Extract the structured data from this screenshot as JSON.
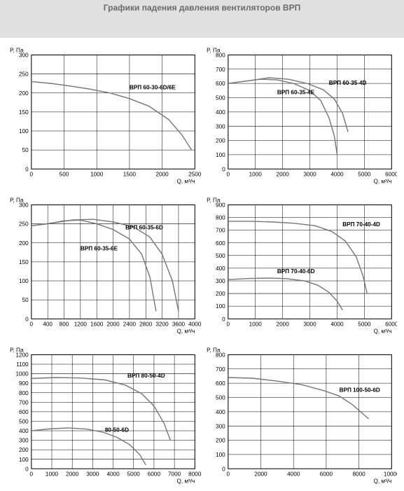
{
  "page_title": "Графики падения давления вентиляторов ВРП",
  "colors": {
    "header_bg": "#e0e0e0",
    "title_text": "#6a6a6a",
    "grid": "#000000",
    "curve": "#777777",
    "background": "#ffffff"
  },
  "charts": [
    {
      "id": "c1",
      "y_label": "P, Па",
      "x_label": "Q, м³/ч",
      "xlim": [
        0,
        2500
      ],
      "xtick_step": 500,
      "ylim": [
        0,
        300
      ],
      "ytick_step": 50,
      "series": [
        {
          "label": "ВРП 60-30-6D/6E",
          "label_xy": [
            1500,
            210
          ],
          "data": [
            [
              0,
              230
            ],
            [
              300,
              225
            ],
            [
              600,
              218
            ],
            [
              900,
              210
            ],
            [
              1200,
              200
            ],
            [
              1500,
              185
            ],
            [
              1800,
              165
            ],
            [
              2100,
              130
            ],
            [
              2300,
              90
            ],
            [
              2450,
              50
            ]
          ]
        }
      ]
    },
    {
      "id": "c2",
      "y_label": "P, Па",
      "x_label": "Q, м³/ч",
      "xlim": [
        0,
        6000
      ],
      "xtick_step": 1000,
      "ylim": [
        0,
        800
      ],
      "ytick_step": 100,
      "series": [
        {
          "label": "ВРП 60-35-4E",
          "label_xy": [
            1800,
            525
          ],
          "data": [
            [
              0,
              600
            ],
            [
              600,
              615
            ],
            [
              1200,
              630
            ],
            [
              1800,
              625
            ],
            [
              2400,
              600
            ],
            [
              3000,
              550
            ],
            [
              3400,
              480
            ],
            [
              3700,
              360
            ],
            [
              3900,
              230
            ],
            [
              4000,
              100
            ]
          ]
        },
        {
          "label": "ВРП 60-35-4D",
          "label_xy": [
            3700,
            590
          ],
          "data": [
            [
              0,
              600
            ],
            [
              800,
              620
            ],
            [
              1500,
              640
            ],
            [
              2200,
              630
            ],
            [
              2900,
              600
            ],
            [
              3500,
              555
            ],
            [
              3900,
              490
            ],
            [
              4200,
              390
            ],
            [
              4400,
              260
            ]
          ]
        }
      ]
    },
    {
      "id": "c3",
      "y_label": "P, Па",
      "x_label": "Q, м³/ч",
      "xlim": [
        0,
        4000
      ],
      "xtick_step": 400,
      "ylim": [
        0,
        300
      ],
      "ytick_step": 50,
      "series": [
        {
          "label": "ВРП 60-35-6E",
          "label_xy": [
            1200,
            180
          ],
          "data": [
            [
              0,
              245
            ],
            [
              400,
              250
            ],
            [
              800,
              258
            ],
            [
              1200,
              260
            ],
            [
              1600,
              250
            ],
            [
              2000,
              235
            ],
            [
              2400,
              210
            ],
            [
              2700,
              170
            ],
            [
              2900,
              110
            ],
            [
              3050,
              20
            ]
          ]
        },
        {
          "label": "ВРП 60-35-6D",
          "label_xy": [
            2300,
            235
          ],
          "data": [
            [
              0,
              245
            ],
            [
              500,
              252
            ],
            [
              1000,
              260
            ],
            [
              1500,
              262
            ],
            [
              2000,
              255
            ],
            [
              2500,
              242
            ],
            [
              2900,
              215
            ],
            [
              3200,
              170
            ],
            [
              3450,
              100
            ],
            [
              3600,
              20
            ]
          ]
        }
      ]
    },
    {
      "id": "c4",
      "y_label": "P, Па",
      "x_label": "Q, м³/ч",
      "xlim": [
        0,
        6000
      ],
      "xtick_step": 1000,
      "ylim": [
        0,
        900
      ],
      "ytick_step": 100,
      "series": [
        {
          "label": "ВРП 70-40-4D",
          "label_xy": [
            4200,
            730
          ],
          "data": [
            [
              0,
              770
            ],
            [
              800,
              770
            ],
            [
              1600,
              765
            ],
            [
              2400,
              755
            ],
            [
              3200,
              735
            ],
            [
              3800,
              690
            ],
            [
              4300,
              615
            ],
            [
              4700,
              490
            ],
            [
              4950,
              340
            ],
            [
              5100,
              200
            ]
          ]
        },
        {
          "label": "ВРП 70-40-6D",
          "label_xy": [
            1800,
            360
          ],
          "data": [
            [
              0,
              310
            ],
            [
              700,
              318
            ],
            [
              1400,
              322
            ],
            [
              2100,
              318
            ],
            [
              2800,
              300
            ],
            [
              3300,
              265
            ],
            [
              3700,
              210
            ],
            [
              4000,
              140
            ],
            [
              4200,
              70
            ]
          ]
        }
      ]
    },
    {
      "id": "c5",
      "y_label": "P, Па",
      "x_label": "Q, м³/ч",
      "xlim": [
        0,
        8000
      ],
      "xtick_step": 1000,
      "ylim": [
        0,
        1200
      ],
      "ytick_step": 100,
      "series": [
        {
          "label": "ВРП 80-50-4D",
          "label_xy": [
            4700,
            960
          ],
          "data": [
            [
              0,
              950
            ],
            [
              1200,
              960
            ],
            [
              2400,
              955
            ],
            [
              3600,
              935
            ],
            [
              4600,
              880
            ],
            [
              5400,
              790
            ],
            [
              6000,
              660
            ],
            [
              6500,
              475
            ],
            [
              6800,
              300
            ]
          ]
        },
        {
          "label": "80-50-6D",
          "label_xy": [
            3600,
            390
          ],
          "data": [
            [
              0,
              400
            ],
            [
              900,
              420
            ],
            [
              1800,
              430
            ],
            [
              2700,
              418
            ],
            [
              3500,
              385
            ],
            [
              4200,
              330
            ],
            [
              4800,
              255
            ],
            [
              5300,
              150
            ],
            [
              5600,
              40
            ]
          ]
        }
      ]
    },
    {
      "id": "c6",
      "y_label": "P, Па",
      "x_label": "Q, м³/ч",
      "xlim": [
        0,
        10000
      ],
      "xtick_step": 2000,
      "ylim": [
        0,
        800
      ],
      "ytick_step": 100,
      "series": [
        {
          "label": "ВРП 100-50-6D",
          "label_xy": [
            6800,
            540
          ],
          "data": [
            [
              0,
              640
            ],
            [
              1500,
              635
            ],
            [
              3000,
              615
            ],
            [
              4500,
              590
            ],
            [
              5800,
              550
            ],
            [
              6800,
              510
            ],
            [
              7600,
              450
            ],
            [
              8200,
              390
            ],
            [
              8600,
              350
            ]
          ]
        }
      ]
    }
  ]
}
